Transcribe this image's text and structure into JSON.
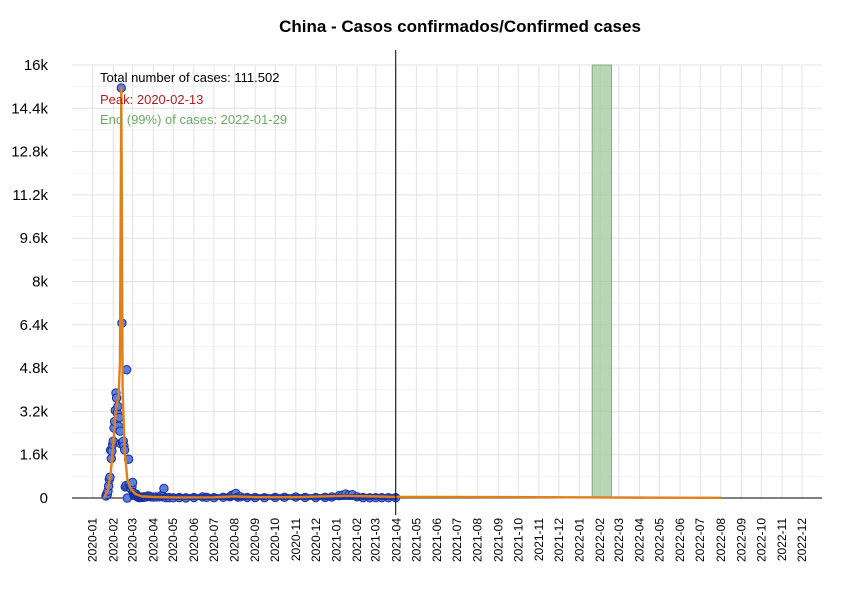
{
  "chart_data": {
    "type": "scatter",
    "title": "China - Casos confirmados/Confirmed cases",
    "xlabel": "",
    "ylabel": "",
    "ylim": [
      0,
      16000
    ],
    "y_ticks": [
      0,
      1600,
      3200,
      4800,
      6400,
      8000,
      9600,
      11200,
      12800,
      14400,
      16000
    ],
    "y_tick_labels": [
      "0",
      "1.6k",
      "3.2k",
      "4.8k",
      "6.4k",
      "8k",
      "9.6k",
      "11.2k",
      "12.8k",
      "14.4k",
      "16k"
    ],
    "x_range": [
      "2019-12-01",
      "2022-12-31"
    ],
    "x_tick_labels": [
      "2020-01",
      "2020-02",
      "2020-03",
      "2020-04",
      "2020-05",
      "2020-06",
      "2020-07",
      "2020-08",
      "2020-09",
      "2020-10",
      "2020-11",
      "2020-12",
      "2021-01",
      "2021-02",
      "2021-03",
      "2021-04",
      "2021-05",
      "2021-06",
      "2021-07",
      "2021-08",
      "2021-09",
      "2021-10",
      "2021-11",
      "2021-12",
      "2022-01",
      "2022-02",
      "2022-03",
      "2022-04",
      "2022-05",
      "2022-06",
      "2022-07",
      "2022-08",
      "2022-09",
      "2022-10",
      "2022-11",
      "2022-12"
    ],
    "grid": true,
    "annotations": {
      "total": "Total number of cases: 111.502",
      "peak": "Peak: 2020-02-13",
      "end": "End (99%) of cases: 2022-01-29"
    },
    "last_data_date": "2021-03-31",
    "end_band": [
      "2022-01-20",
      "2022-02-18"
    ],
    "points": [
      [
        "2020-01-21",
        77
      ],
      [
        "2020-01-22",
        149
      ],
      [
        "2020-01-23",
        131
      ],
      [
        "2020-01-24",
        259
      ],
      [
        "2020-01-25",
        444
      ],
      [
        "2020-01-26",
        688
      ],
      [
        "2020-01-27",
        769
      ],
      [
        "2020-01-28",
        1771
      ],
      [
        "2020-01-29",
        1459
      ],
      [
        "2020-01-30",
        1737
      ],
      [
        "2020-01-31",
        1981
      ],
      [
        "2020-02-01",
        2099
      ],
      [
        "2020-02-02",
        2589
      ],
      [
        "2020-02-03",
        2825
      ],
      [
        "2020-02-04",
        3235
      ],
      [
        "2020-02-05",
        3884
      ],
      [
        "2020-02-06",
        3694
      ],
      [
        "2020-02-07",
        3143
      ],
      [
        "2020-02-08",
        3385
      ],
      [
        "2020-02-09",
        2652
      ],
      [
        "2020-02-10",
        2973
      ],
      [
        "2020-02-11",
        2467
      ],
      [
        "2020-02-12",
        2015
      ],
      [
        "2020-02-13",
        15152
      ],
      [
        "2020-02-14",
        6463
      ],
      [
        "2020-02-15",
        2055
      ],
      [
        "2020-02-16",
        2100
      ],
      [
        "2020-02-17",
        1921
      ],
      [
        "2020-02-18",
        1777
      ],
      [
        "2020-02-19",
        408
      ],
      [
        "2020-02-20",
        458
      ],
      [
        "2020-02-21",
        4740
      ],
      [
        "2020-02-22",
        0
      ],
      [
        "2020-02-23",
        409
      ],
      [
        "2020-02-24",
        1434
      ],
      [
        "2020-02-25",
        508
      ],
      [
        "2020-02-26",
        406
      ],
      [
        "2020-02-27",
        433
      ],
      [
        "2020-02-28",
        327
      ],
      [
        "2020-02-29",
        427
      ],
      [
        "2020-03-01",
        573
      ],
      [
        "2020-03-02",
        202
      ],
      [
        "2020-03-03",
        125
      ],
      [
        "2020-03-04",
        119
      ],
      [
        "2020-03-05",
        139
      ],
      [
        "2020-03-06",
        143
      ],
      [
        "2020-03-07",
        99
      ],
      [
        "2020-03-08",
        44
      ],
      [
        "2020-03-09",
        40
      ],
      [
        "2020-03-10",
        19
      ],
      [
        "2020-03-11",
        24
      ],
      [
        "2020-03-12",
        15
      ],
      [
        "2020-03-13",
        20
      ],
      [
        "2020-03-14",
        25
      ],
      [
        "2020-03-15",
        27
      ],
      [
        "2020-03-16",
        39
      ],
      [
        "2020-03-17",
        25
      ],
      [
        "2020-03-18",
        34
      ],
      [
        "2020-03-19",
        39
      ],
      [
        "2020-03-20",
        41
      ],
      [
        "2020-03-22",
        46
      ],
      [
        "2020-03-24",
        78
      ],
      [
        "2020-03-26",
        67
      ],
      [
        "2020-03-28",
        45
      ],
      [
        "2020-04-01",
        35
      ],
      [
        "2020-04-05",
        39
      ],
      [
        "2020-04-10",
        42
      ],
      [
        "2020-04-13",
        89
      ],
      [
        "2020-04-15",
        46
      ],
      [
        "2020-04-17",
        352
      ],
      [
        "2020-04-20",
        12
      ],
      [
        "2020-04-25",
        11
      ],
      [
        "2020-05-01",
        6
      ],
      [
        "2020-05-10",
        14
      ],
      [
        "2020-05-20",
        5
      ],
      [
        "2020-06-01",
        16
      ],
      [
        "2020-06-14",
        40
      ],
      [
        "2020-06-20",
        27
      ],
      [
        "2020-07-01",
        10
      ],
      [
        "2020-07-15",
        25
      ],
      [
        "2020-07-25",
        45
      ],
      [
        "2020-07-28",
        100
      ],
      [
        "2020-07-31",
        127
      ],
      [
        "2020-08-03",
        170
      ],
      [
        "2020-08-06",
        37
      ],
      [
        "2020-08-10",
        45
      ],
      [
        "2020-08-20",
        22
      ],
      [
        "2020-09-01",
        16
      ],
      [
        "2020-09-15",
        12
      ],
      [
        "2020-10-01",
        20
      ],
      [
        "2020-10-15",
        25
      ],
      [
        "2020-11-01",
        33
      ],
      [
        "2020-11-15",
        19
      ],
      [
        "2020-12-01",
        16
      ],
      [
        "2020-12-15",
        23
      ],
      [
        "2020-12-25",
        40
      ],
      [
        "2021-01-05",
        85
      ],
      [
        "2021-01-10",
        103
      ],
      [
        "2021-01-15",
        144
      ],
      [
        "2021-01-20",
        103
      ],
      [
        "2021-01-25",
        124
      ],
      [
        "2021-02-01",
        42
      ],
      [
        "2021-02-10",
        14
      ],
      [
        "2021-02-20",
        8
      ],
      [
        "2021-03-01",
        10
      ],
      [
        "2021-03-10",
        12
      ],
      [
        "2021-03-20",
        11
      ],
      [
        "2021-03-31",
        13
      ]
    ],
    "fit_line": [
      [
        "2020-01-18",
        0
      ],
      [
        "2020-01-24",
        300
      ],
      [
        "2020-01-28",
        900
      ],
      [
        "2020-02-01",
        2000
      ],
      [
        "2020-02-05",
        3300
      ],
      [
        "2020-02-09",
        3800
      ],
      [
        "2020-02-11",
        5000
      ],
      [
        "2020-02-13",
        15152
      ],
      [
        "2020-02-15",
        4000
      ],
      [
        "2020-02-18",
        1800
      ],
      [
        "2020-02-22",
        700
      ],
      [
        "2020-02-27",
        350
      ],
      [
        "2020-03-05",
        150
      ],
      [
        "2020-03-15",
        60
      ],
      [
        "2020-04-01",
        40
      ],
      [
        "2020-05-01",
        20
      ],
      [
        "2020-07-01",
        25
      ],
      [
        "2020-08-01",
        60
      ],
      [
        "2020-09-01",
        30
      ],
      [
        "2020-11-01",
        30
      ],
      [
        "2021-01-15",
        80
      ],
      [
        "2021-03-31",
        40
      ],
      [
        "2021-06-01",
        38
      ],
      [
        "2021-09-01",
        35
      ],
      [
        "2022-01-29",
        20
      ],
      [
        "2022-05-01",
        10
      ],
      [
        "2022-08-01",
        5
      ]
    ],
    "colors": {
      "point_fill": "#5b7fe0",
      "point_stroke": "#1a2e99",
      "fit_line": "#e0801a",
      "end_band_fill": "#a8cba4",
      "end_band_stroke": "#7faf7a",
      "total_text": "#000000",
      "peak_text": "#b71c1c",
      "end_text": "#6aaa64",
      "vertical_line": "#000000"
    }
  }
}
